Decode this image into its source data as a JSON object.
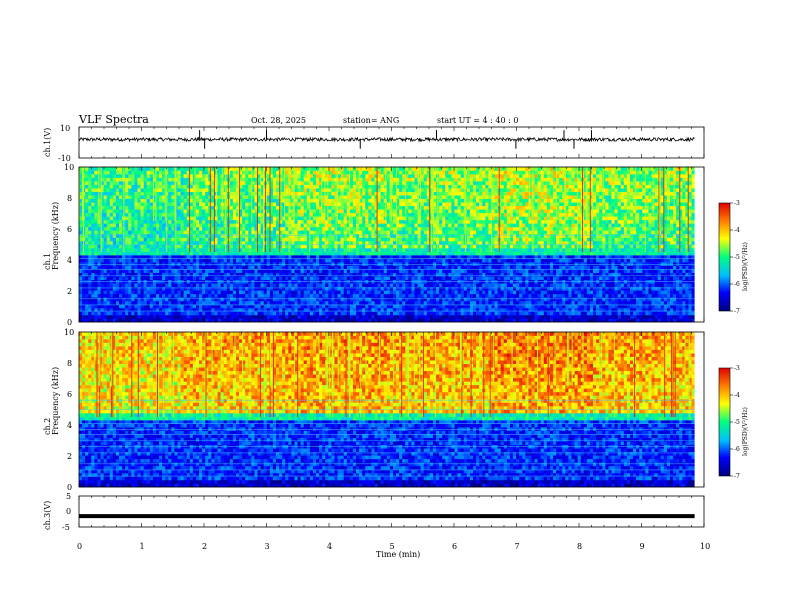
{
  "header": {
    "title": "VLF Spectra",
    "date": "Oct. 28, 2025",
    "station": "station= ANG",
    "start_ut": "start  UT =   4 : 40 : 0"
  },
  "chart_data": [
    {
      "type": "line",
      "name": "waveform-ch1",
      "ylabel": "ch.1(V)",
      "ylim": [
        -10,
        10
      ],
      "yticks": [
        "10",
        "-10"
      ],
      "xlim": [
        0,
        10
      ],
      "baseline": 2,
      "spikes_at_min": [
        1.93,
        2.01,
        3.0,
        4.5,
        5.72,
        6.99,
        7.76,
        7.92,
        8.2
      ]
    },
    {
      "type": "heatmap",
      "name": "spectrogram-ch1",
      "ylabel": "Frequency (kHz)",
      "channel_label": "ch.1",
      "ylim": [
        0,
        10
      ],
      "yticks": [
        "0",
        "2",
        "4",
        "6",
        "8",
        "10"
      ],
      "xlim": [
        0,
        10
      ],
      "colorbar": {
        "label": "log(PSD)(V²/Hz)",
        "ticks": [
          "-3",
          "-4",
          "-5",
          "-6",
          "-7"
        ],
        "range": [
          -7,
          -3
        ]
      },
      "intensity_profile_high_band": [
        -5.3,
        -5.1,
        -4.9,
        -5.0,
        -4.8,
        -5.0
      ]
    },
    {
      "type": "heatmap",
      "name": "spectrogram-ch2",
      "ylabel": "Frequency (kHz)",
      "channel_label": "ch.2",
      "ylim": [
        0,
        10
      ],
      "yticks": [
        "0",
        "2",
        "4",
        "6",
        "8",
        "10"
      ],
      "xlim": [
        0,
        10
      ],
      "colorbar": {
        "label": "log(PSD)(V²/Hz)",
        "ticks": [
          "-3",
          "-4",
          "-5",
          "-6",
          "-7"
        ],
        "range": [
          -7,
          -3
        ]
      },
      "intensity_profile_high_band": [
        -4.4,
        -4.2,
        -4.1,
        -4.2,
        -4.0,
        -4.2
      ]
    },
    {
      "type": "line",
      "name": "waveform-ch3",
      "ylabel": "ch.3(V)",
      "ylim": [
        -5,
        5
      ],
      "yticks": [
        "5",
        "0",
        "-5"
      ],
      "xlim": [
        0,
        10
      ],
      "xlabel": "Time (min)",
      "xticks": [
        "0",
        "1",
        "2",
        "3",
        "4",
        "5",
        "6",
        "7",
        "8",
        "9",
        "10"
      ],
      "baseline": -1.5
    }
  ],
  "colors": {
    "colormap": [
      "#00007f",
      "#0000ff",
      "#00bfff",
      "#00ff80",
      "#ffff00",
      "#ff8000",
      "#e00000"
    ]
  }
}
